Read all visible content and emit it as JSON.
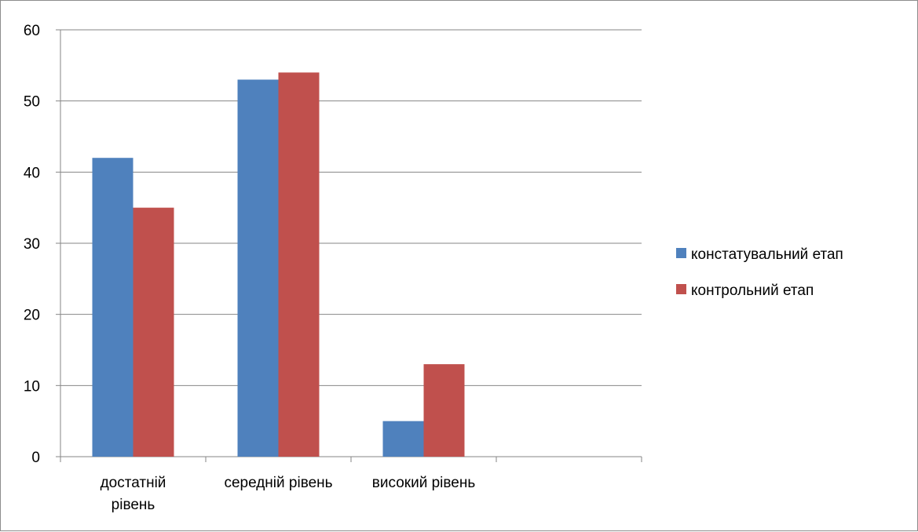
{
  "chart_data": {
    "type": "bar",
    "categories": [
      [
        "достатній",
        "рівень"
      ],
      [
        "середній рівень"
      ],
      [
        "високий рівень"
      ],
      [
        ""
      ]
    ],
    "series": [
      {
        "name": "констатувальний етап",
        "values": [
          42,
          53,
          5,
          null
        ],
        "color": "#4f81bd"
      },
      {
        "name": "контрольний етап",
        "values": [
          35,
          54,
          13,
          null
        ],
        "color": "#c0504d"
      }
    ],
    "ylim": [
      0,
      60
    ],
    "yticks": [
      0,
      10,
      20,
      30,
      40,
      50,
      60
    ],
    "grid": true,
    "legend_position": "right",
    "title": "",
    "xlabel": "",
    "ylabel": ""
  }
}
